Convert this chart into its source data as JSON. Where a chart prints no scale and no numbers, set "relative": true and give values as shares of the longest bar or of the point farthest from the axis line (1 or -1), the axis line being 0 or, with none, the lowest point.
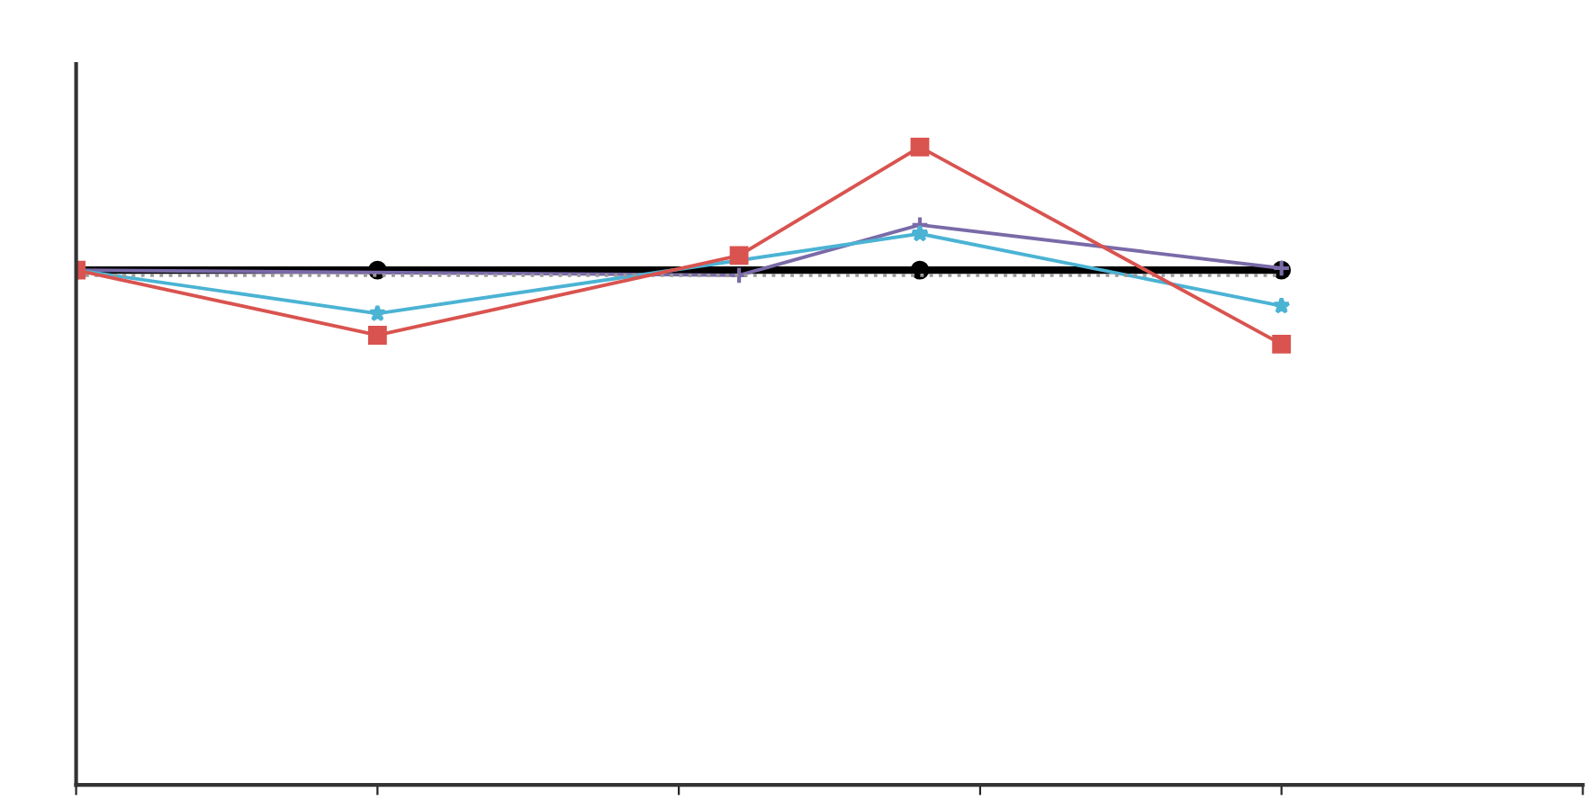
{
  "chart_data": {
    "type": "line",
    "relative": true,
    "line_style": "solid",
    "categories": [
      null,
      null,
      null,
      null,
      null,
      null,
      null,
      null,
      null,
      null,
      null,
      null,
      null,
      null,
      null,
      null,
      null,
      null,
      null,
      null,
      null,
      null,
      null,
      null,
      null,
      null
    ],
    "series": [
      {
        "color": "#000000",
        "marker": "circle",
        "values": [
          0.807,
          null,
          null,
          null,
          null,
          0.807,
          null,
          null,
          null,
          null,
          null,
          null,
          null,
          null,
          0.807,
          null,
          null,
          null,
          null,
          null,
          0.807,
          null,
          null,
          null,
          null,
          null
        ]
      },
      {
        "color": "#7a6aa8",
        "marker": "cross",
        "values": [
          0.807,
          null,
          null,
          null,
          null,
          null,
          null,
          null,
          null,
          null,
          null,
          0.799,
          null,
          null,
          0.878,
          null,
          null,
          null,
          null,
          null,
          0.81,
          null,
          null,
          null,
          null,
          null
        ]
      },
      {
        "color": "#4bb3d4",
        "marker": "star",
        "values": [
          0.807,
          null,
          null,
          null,
          null,
          0.739,
          null,
          null,
          null,
          null,
          null,
          null,
          null,
          null,
          0.864,
          null,
          null,
          null,
          null,
          null,
          0.751,
          null,
          null,
          null,
          null,
          null
        ]
      },
      {
        "color": "#9a9a9a",
        "marker": "none",
        "line_style": "dotted",
        "values": [
          0.799,
          null,
          null,
          null,
          null,
          0.799,
          null,
          null,
          null,
          null,
          0.799,
          null,
          null,
          null,
          null,
          0.799,
          null,
          null,
          null,
          null,
          0.799,
          null,
          null,
          null,
          null,
          null
        ]
      },
      {
        "color": "#d9534f",
        "marker": "square",
        "values": [
          0.807,
          null,
          null,
          null,
          null,
          0.705,
          null,
          null,
          null,
          null,
          null,
          0.83,
          null,
          null,
          1.0,
          null,
          null,
          null,
          null,
          null,
          0.691,
          null,
          null,
          null,
          null,
          null
        ]
      }
    ]
  }
}
